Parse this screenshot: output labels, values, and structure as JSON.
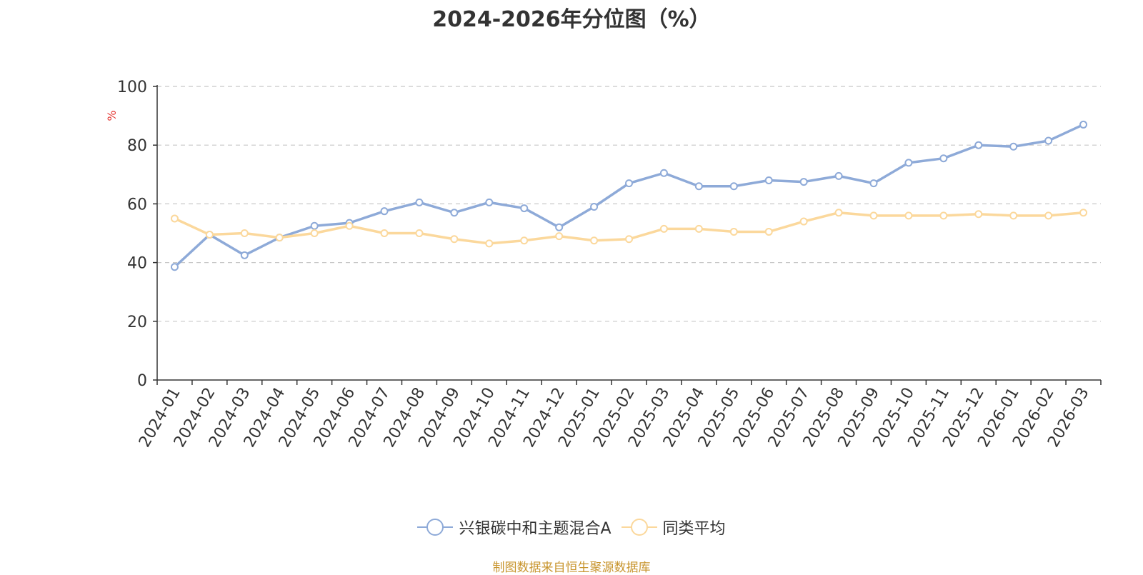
{
  "chart_data": {
    "type": "line",
    "title": "2024-2026年分位图（%）",
    "ylabel": "%",
    "ylim": [
      0,
      100
    ],
    "yticks": [
      0,
      20,
      40,
      60,
      80,
      100
    ],
    "grid": true,
    "legend_position": "bottom",
    "categories": [
      "2024-01",
      "2024-02",
      "2024-03",
      "2024-04",
      "2024-05",
      "2024-06",
      "2024-07",
      "2024-08",
      "2024-09",
      "2024-10",
      "2024-11",
      "2024-12",
      "2025-01",
      "2025-02",
      "2025-03",
      "2025-04",
      "2025-05",
      "2025-06",
      "2025-07",
      "2025-08",
      "2025-09",
      "2025-10",
      "2025-11",
      "2025-12",
      "2026-01",
      "2026-02",
      "2026-03"
    ],
    "series": [
      {
        "name": "兴银碳中和主题混合A",
        "color": "#8eaad8",
        "values": [
          38.5,
          49.5,
          42.5,
          48.5,
          52.5,
          53.5,
          57.5,
          60.5,
          57,
          60.5,
          58.5,
          52,
          59,
          67,
          70.5,
          66,
          66,
          68,
          67.5,
          69.5,
          67,
          74,
          75.5,
          80,
          79.5,
          81.5,
          87
        ]
      },
      {
        "name": "同类平均",
        "color": "#fbd89c",
        "values": [
          55,
          49.5,
          50,
          48.5,
          50,
          52.5,
          50,
          50,
          48,
          46.5,
          47.5,
          49,
          47.5,
          48,
          51.5,
          51.5,
          50.5,
          50.5,
          54,
          57,
          56,
          56,
          56,
          56.5,
          56,
          56,
          57
        ]
      }
    ]
  },
  "source": "制图数据来自恒生聚源数据库"
}
